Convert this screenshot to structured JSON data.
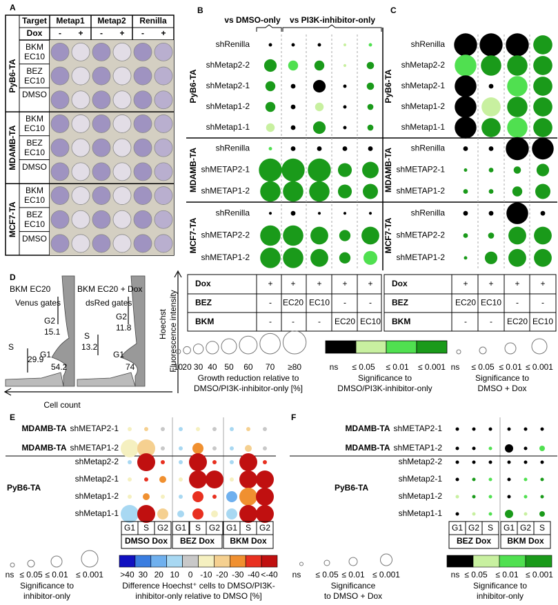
{
  "sig_colors": [
    "#000000",
    "#c8f0a0",
    "#50e050",
    "#1a9a1a"
  ],
  "panel_a": {
    "label": "A",
    "header": [
      "Target",
      "Metap1",
      "Metap2",
      "Renilla"
    ],
    "dox_label": "Dox",
    "dox_levels": [
      "-",
      "+",
      "-",
      "+",
      "-",
      "+"
    ],
    "groups": [
      {
        "name": "PyB6-TA",
        "rows": [
          "BKM EC10",
          "BEZ EC10",
          "DMSO"
        ]
      },
      {
        "name": "MDAMB-TA",
        "rows": [
          "BKM EC10",
          "BEZ EC10",
          "DMSO"
        ]
      },
      {
        "name": "MCF7-TA",
        "rows": [
          "BKM EC10",
          "BEZ EC10",
          "DMSO"
        ]
      }
    ]
  },
  "panel_b": {
    "label": "B",
    "headers": [
      "vs DMSO-only",
      "vs PI3K-inhibitor-only"
    ],
    "groups": [
      {
        "name": "PyB6-TA",
        "rows": [
          "shRenilla",
          "shMetap2-2",
          "shMetap2-1",
          "shMetap1-2",
          "shMetap1-1"
        ],
        "size": [
          [
            5,
            5,
            5,
            3,
            5
          ],
          [
            40,
            30,
            30,
            3,
            20
          ],
          [
            30,
            10,
            40,
            5,
            20
          ],
          [
            30,
            10,
            25,
            5,
            15
          ],
          [
            25,
            10,
            40,
            5,
            15
          ]
        ],
        "sig": [
          [
            0,
            0,
            0,
            1,
            2
          ],
          [
            3,
            2,
            3,
            1,
            3
          ],
          [
            3,
            0,
            0,
            0,
            3
          ],
          [
            3,
            0,
            1,
            0,
            3
          ],
          [
            1,
            0,
            3,
            0,
            3
          ]
        ]
      },
      {
        "name": "MDAMB-TA",
        "rows": [
          "shRenilla",
          "shMETAP2-1",
          "shMETAP1-2"
        ],
        "size": [
          [
            5,
            10,
            10,
            10,
            10
          ],
          [
            80,
            80,
            80,
            45,
            55
          ],
          [
            70,
            70,
            70,
            45,
            50
          ]
        ],
        "sig": [
          [
            2,
            0,
            0,
            0,
            0
          ],
          [
            3,
            3,
            3,
            3,
            3
          ],
          [
            3,
            3,
            3,
            3,
            3
          ]
        ]
      },
      {
        "name": "MCF7-TA",
        "rows": [
          "shRenilla",
          "shMETAP2-2",
          "shMETAP1-2"
        ],
        "size": [
          [
            3,
            10,
            3,
            3,
            3
          ],
          [
            70,
            70,
            60,
            35,
            60
          ],
          [
            70,
            70,
            60,
            35,
            45
          ]
        ],
        "sig": [
          [
            0,
            0,
            0,
            0,
            0
          ],
          [
            3,
            3,
            3,
            3,
            3
          ],
          [
            3,
            3,
            3,
            3,
            2
          ]
        ]
      }
    ],
    "table": [
      {
        "name": "Dox",
        "cells": [
          "+",
          "+",
          "+",
          "+",
          "+"
        ]
      },
      {
        "name": "BEZ",
        "cells": [
          "-",
          "EC20",
          "EC10",
          "-",
          "-"
        ]
      },
      {
        "name": "BKM",
        "cells": [
          "-",
          "-",
          "-",
          "EC20",
          "EC10"
        ]
      }
    ],
    "size_legend": {
      "ticks": [
        10,
        20,
        30,
        40,
        50,
        60,
        70,
        {
          "value": 80,
          "label": "≥80"
        }
      ],
      "caption": [
        "Growth reduction relative to",
        "DMSO/PI3K-inhibitor-only [%]"
      ]
    },
    "color_legend": {
      "labels": [
        "ns",
        "≤ 0.05",
        "≤ 0.01",
        "≤ 0.001"
      ],
      "caption": [
        "Significance to",
        "DMSO/PI3K-inhibitor-only"
      ]
    }
  },
  "panel_c": {
    "label": "C",
    "groups": [
      {
        "name": "PyB6-TA",
        "rows": [
          "shRenilla",
          "shMetap2-2",
          "shMetap2-1",
          "shMetap1-2",
          "shMetap1-1"
        ],
        "size": [
          [
            80,
            80,
            80,
            65
          ],
          [
            75,
            70,
            70,
            65
          ],
          [
            75,
            10,
            70,
            65
          ],
          [
            75,
            65,
            70,
            65
          ],
          [
            75,
            65,
            70,
            65
          ]
        ],
        "sig": [
          [
            0,
            0,
            0,
            3
          ],
          [
            2,
            3,
            3,
            3
          ],
          [
            0,
            0,
            2,
            3
          ],
          [
            0,
            1,
            3,
            3
          ],
          [
            0,
            3,
            2,
            3
          ]
        ]
      },
      {
        "name": "MDAMB-TA",
        "rows": [
          "shRenilla",
          "shMETAP2-1",
          "shMETAP1-2"
        ],
        "size": [
          [
            10,
            10,
            80,
            75
          ],
          [
            5,
            10,
            20,
            40
          ],
          [
            10,
            10,
            30,
            50
          ]
        ],
        "sig": [
          [
            0,
            0,
            0,
            0
          ],
          [
            3,
            3,
            3,
            3
          ],
          [
            3,
            3,
            3,
            3
          ]
        ]
      },
      {
        "name": "MCF7-TA",
        "rows": [
          "shRenilla",
          "shMETAP2-2",
          "shMETAP1-2"
        ],
        "size": [
          [
            10,
            10,
            75,
            10
          ],
          [
            10,
            15,
            60,
            60
          ],
          [
            5,
            40,
            60,
            60
          ]
        ],
        "sig": [
          [
            0,
            0,
            0,
            0
          ],
          [
            3,
            3,
            3,
            3
          ],
          [
            3,
            3,
            3,
            3
          ]
        ]
      }
    ],
    "table": [
      {
        "name": "Dox",
        "cells": [
          "+",
          "+",
          "+",
          "+"
        ]
      },
      {
        "name": "BEZ",
        "cells": [
          "EC20",
          "EC10",
          "-",
          "-"
        ]
      },
      {
        "name": "BKM",
        "cells": [
          "-",
          "-",
          "EC20",
          "EC10"
        ]
      }
    ],
    "size_legend": {
      "labels": [
        "ns",
        "≤ 0.05",
        "≤ 0.01",
        "≤ 0.001"
      ],
      "caption": [
        "Significance to",
        "DMSO + Dox"
      ]
    }
  },
  "panel_d": {
    "label": "D",
    "plots": [
      {
        "title": "BKM EC20",
        "subtitle": "Venus gates",
        "gates": [
          {
            "name": "G2",
            "value": 15.1
          },
          {
            "name": "S",
            "value": 29.9
          },
          {
            "name": "G1",
            "value": 54.2
          }
        ]
      },
      {
        "title": "BKM EC20 + Dox",
        "subtitle": "dsRed gates",
        "gates": [
          {
            "name": "G2",
            "value": 11.8
          },
          {
            "name": "S",
            "value": 13.2
          },
          {
            "name": "G1",
            "value": 74.0
          }
        ]
      }
    ],
    "y_label": [
      "Hoechst",
      "Fluorescence intensity"
    ],
    "x_label": "Cell count"
  },
  "panel_e": {
    "label": "E",
    "columns": [
      {
        "name": "DMSO Dox",
        "phases": [
          "G1",
          "S",
          "G2"
        ]
      },
      {
        "name": "BEZ Dox",
        "phases": [
          "G1",
          "S",
          "G2"
        ]
      },
      {
        "name": "BKM Dox",
        "phases": [
          "G1",
          "S",
          "G2"
        ]
      }
    ],
    "groups": [
      {
        "rows": [
          {
            "group": "MDAMB-TA",
            "name": "shMETAP2-1",
            "diff": [
              -10,
              -20,
              0,
              10,
              -10,
              0,
              10,
              -20,
              0
            ],
            "sig": [
              0,
              0,
              0,
              0,
              0,
              0,
              0,
              0,
              0
            ]
          },
          {
            "group": "MDAMB-TA",
            "name": "shMETAP1-2",
            "diff": [
              -10,
              -20,
              0,
              10,
              -30,
              0,
              10,
              -20,
              0
            ],
            "sig": [
              3,
              3,
              0,
              0,
              2,
              0,
              0,
              1,
              0
            ]
          }
        ]
      },
      {
        "name": "PyB6-TA",
        "rows": [
          {
            "name": "shMetap2-2",
            "diff": [
              10,
              -50,
              -40,
              10,
              -50,
              -40,
              10,
              -50,
              -40
            ],
            "sig": [
              0,
              3,
              0,
              0,
              3,
              0,
              0,
              3,
              0
            ]
          },
          {
            "name": "shMetap2-1",
            "diff": [
              -10,
              -40,
              -30,
              -10,
              -50,
              -50,
              -10,
              -50,
              -50
            ],
            "sig": [
              0,
              0,
              1,
              0,
              3,
              3,
              0,
              3,
              3
            ]
          },
          {
            "name": "shMetap1-2",
            "diff": [
              -10,
              -30,
              -10,
              10,
              -40,
              -40,
              20,
              -30,
              -50
            ],
            "sig": [
              0,
              1,
              0,
              0,
              2,
              0,
              2,
              3,
              3
            ]
          },
          {
            "name": "shMetap1-1",
            "diff": [
              10,
              -50,
              -20,
              10,
              -40,
              -10,
              10,
              -50,
              -50
            ],
            "sig": [
              3,
              3,
              2,
              1,
              2,
              1,
              2,
              3,
              3
            ]
          }
        ]
      }
    ],
    "size_legend": {
      "labels": [
        "ns",
        "≤ 0.05",
        "≤ 0.01",
        "≤ 0.001"
      ],
      "caption": [
        "Significance to",
        "inhibitor-only"
      ]
    },
    "color_legend": {
      "ticks": [
        {
          "value": 50,
          "label": ">40"
        },
        30,
        20,
        10,
        0,
        -10,
        -20,
        -30,
        -40,
        {
          "value": -50,
          "label": "<-40"
        }
      ],
      "colors": [
        "#1010c0",
        "#3a7de0",
        "#6fb0ee",
        "#a8d8f2",
        "#c8c8c8",
        "#f5f0c0",
        "#f5d090",
        "#f09030",
        "#e83020",
        "#c01010"
      ],
      "caption": [
        "Difference Hoechst⁺ cells to DMSO/PI3K-",
        "inhibitor-only relative to DMSO [%]"
      ]
    }
  },
  "panel_f": {
    "label": "F",
    "columns": [
      {
        "name": "BEZ Dox",
        "phases": [
          "G1",
          "G2",
          "S"
        ]
      },
      {
        "name": "BKM Dox",
        "phases": [
          "G1",
          "G2",
          "S"
        ]
      }
    ],
    "groups": [
      {
        "rows": [
          {
            "group": "MDAMB-TA",
            "name": "shMETAP2-1",
            "sig_inhibitor": [
              0,
              0,
              0,
              0,
              0,
              0
            ],
            "sig_dmso": [
              0,
              0,
              0,
              0,
              0,
              0
            ]
          },
          {
            "group": "MDAMB-TA",
            "name": "shMETAP1-2",
            "sig_inhibitor": [
              0,
              0,
              2,
              0,
              0,
              2
            ],
            "sig_dmso": [
              0,
              0,
              0,
              2,
              0,
              1
            ]
          }
        ]
      },
      {
        "name": "PyB6-TA",
        "rows": [
          {
            "name": "shMetap2-2",
            "sig_inhibitor": [
              0,
              0,
              0,
              0,
              0,
              0
            ],
            "sig_dmso": [
              0,
              0,
              0,
              0,
              0,
              0
            ]
          },
          {
            "name": "shMetap2-1",
            "sig_inhibitor": [
              0,
              3,
              2,
              0,
              2,
              3
            ],
            "sig_dmso": [
              0,
              0,
              0,
              0,
              0,
              0
            ]
          },
          {
            "name": "shMetap1-2",
            "sig_inhibitor": [
              1,
              3,
              2,
              0,
              2,
              3
            ],
            "sig_dmso": [
              0,
              0,
              0,
              0,
              0,
              0
            ]
          },
          {
            "name": "shMetap1-1",
            "sig_inhibitor": [
              0,
              1,
              2,
              3,
              1,
              3
            ],
            "sig_dmso": [
              0,
              0,
              0,
              2,
              0,
              1
            ]
          }
        ]
      }
    ],
    "size_legend": {
      "labels": [
        "ns",
        "≤ 0.05",
        "≤ 0.01",
        "≤ 0.001"
      ],
      "caption": [
        "Significance",
        "to DMSO + Dox"
      ]
    },
    "color_legend": {
      "labels": [
        "ns",
        "≤ 0.05",
        "≤ 0.01",
        "≤ 0.001"
      ],
      "caption": [
        "Significance to",
        "inhibitor-only"
      ]
    }
  }
}
